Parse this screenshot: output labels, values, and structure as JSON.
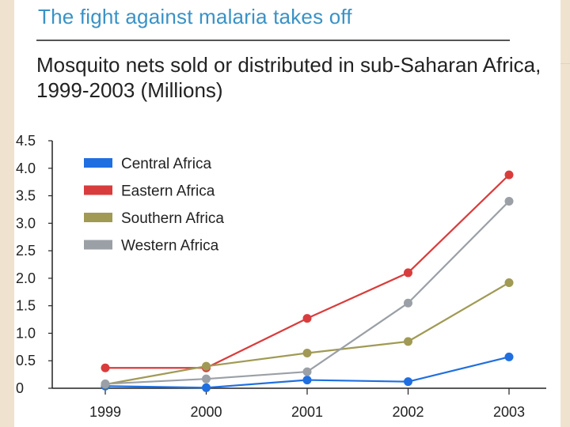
{
  "slide": {
    "background": "#f6ede0"
  },
  "header": {
    "title": "The fight against malaria takes off"
  },
  "chart_data": {
    "type": "line",
    "title": "Mosquito nets sold or distributed in sub-Saharan Africa, 1999-2003 (Millions)",
    "xlabel": "",
    "ylabel": "",
    "categories": [
      "1999",
      "2000",
      "2001",
      "2002",
      "2003"
    ],
    "y_ticks": [
      "0",
      "0.5",
      "1.0",
      "1.5",
      "2.0",
      "2.5",
      "3.0",
      "3.5",
      "4.0",
      "4.5"
    ],
    "y_tick_values": [
      0,
      0.5,
      1.0,
      1.5,
      2.0,
      2.5,
      3.0,
      3.5,
      4.0,
      4.5
    ],
    "ylim": [
      0,
      4.5
    ],
    "grid": false,
    "legend_position": "top-left",
    "series": [
      {
        "name": "Central Africa",
        "color": "#1f6fe0",
        "values": [
          0.04,
          0.01,
          0.15,
          0.12,
          0.57
        ]
      },
      {
        "name": "Eastern Africa",
        "color": "#d93c3c",
        "values": [
          0.37,
          0.37,
          1.27,
          2.1,
          3.88
        ]
      },
      {
        "name": "Southern Africa",
        "color": "#a09a55",
        "values": [
          0.07,
          0.4,
          0.64,
          0.85,
          1.92
        ]
      },
      {
        "name": "Western Africa",
        "color": "#9aa0a6",
        "values": [
          0.08,
          0.17,
          0.3,
          1.55,
          3.4
        ]
      }
    ]
  }
}
